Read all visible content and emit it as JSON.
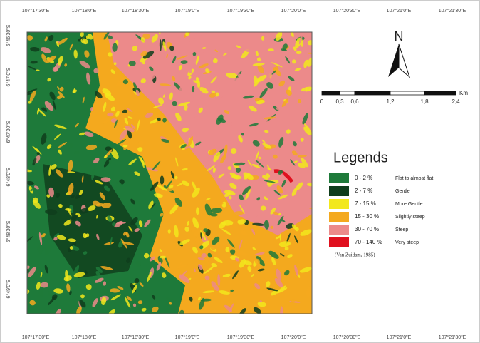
{
  "top_labels": [
    "107°17'30\"E",
    "107°18'0\"E",
    "107°18'30\"E",
    "107°19'0\"E",
    "107°19'30\"E",
    "107°20'0\"E",
    "107°20'30\"E",
    "107°21'0\"E",
    "107°21'30\"E"
  ],
  "bottom_labels": [
    "107°17'30\"E",
    "107°18'0\"E",
    "107°18'30\"E",
    "107°19'0\"E",
    "107°19'30\"E",
    "107°20'0\"E",
    "107°20'30\"E",
    "107°21'0\"E",
    "107°21'30\"E"
  ],
  "left_labels": [
    "6°46'30\"S",
    "6°47'0\"S",
    "6°47'30\"S",
    "6°48'0\"S",
    "6°48'30\"S",
    "6°49'0\"S"
  ],
  "north": "N",
  "scale": {
    "unit": "Km",
    "labels": [
      "0",
      "0,3",
      "0,6",
      "1,2",
      "1,8",
      "2,4"
    ]
  },
  "legend": {
    "title": "Legends",
    "items": [
      {
        "range": "0 - 2 %",
        "description": "Flat to almost flat",
        "color": "#1e7a3a"
      },
      {
        "range": "2 - 7 %",
        "description": "Gentle",
        "color": "#0f3d1c"
      },
      {
        "range": "7 - 15 %",
        "description": "More Gentle",
        "color": "#f2e81c"
      },
      {
        "range": "15 - 30 %",
        "description": "Slightly steep",
        "color": "#f4a91e"
      },
      {
        "range": "30 - 70 %",
        "description": "Steep",
        "color": "#ec8a8a"
      },
      {
        "range": "70 - 140 %",
        "description": "Very steep",
        "color": "#e0101e"
      }
    ],
    "source": "(Van Zuidam, 1985)"
  }
}
